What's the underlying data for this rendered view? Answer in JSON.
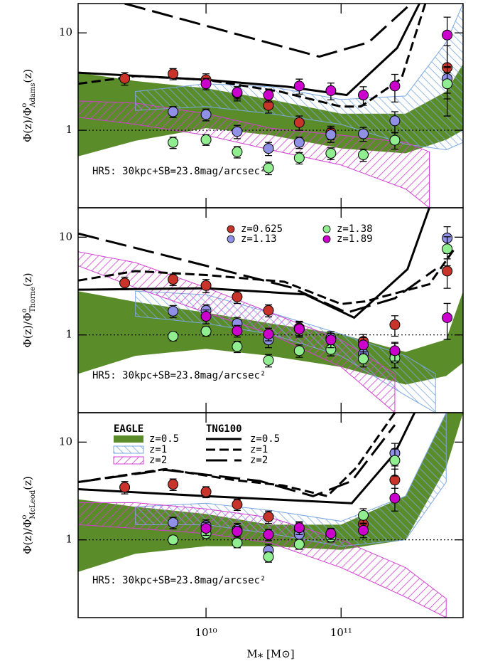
{
  "chart_data": [
    {
      "type": "scatter",
      "ylabel": {
        "text": "Φ(z)/Φ",
        "sup": "o",
        "sub": "Adams",
        "tail": "(z)"
      },
      "annotation": "HR5: 30kpc+SB=23.8mag/arcsec²",
      "xlim": [
        1130000000.0,
        800000000000.0
      ],
      "ylim": [
        0.16,
        20
      ],
      "yticks": [
        1,
        10
      ],
      "log_x": true,
      "log_y": true,
      "reference_line": 1,
      "series": [
        {
          "color": "#c8342a",
          "x": [
            2500000000.0,
            5700000000.0,
            10000000000.0,
            17000000000.0,
            29000000000.0,
            49000000000.0,
            84000000000.0,
            610000000000.0
          ],
          "values": [
            3.4,
            3.8,
            3.3,
            2.4,
            1.8,
            1.2,
            0.95,
            4.4
          ],
          "errors": [
            0.5,
            0.5,
            0.5,
            0.4,
            0.3,
            0.2,
            0.15,
            3
          ]
        },
        {
          "color": "#9090e6",
          "x": [
            5700000000.0,
            10000000000.0,
            17000000000.0,
            29000000000.0,
            49000000000.0,
            84000000000.0,
            146000000000.0,
            250000000000.0,
            610000000000.0
          ],
          "values": [
            1.55,
            1.45,
            0.97,
            0.65,
            0.75,
            0.9,
            0.92,
            1.25,
            3.4
          ],
          "errors": [
            0.2,
            0.2,
            0.15,
            0.1,
            0.1,
            0.15,
            0.15,
            0.3,
            1
          ]
        },
        {
          "color": "#90ee90",
          "x": [
            5700000000.0,
            10000000000.0,
            17000000000.0,
            29000000000.0,
            49000000000.0,
            84000000000.0,
            146000000000.0,
            250000000000.0,
            610000000000.0
          ],
          "values": [
            0.75,
            0.8,
            0.6,
            0.41,
            0.52,
            0.58,
            0.56,
            0.79,
            3.0
          ],
          "errors": [
            0.1,
            0.1,
            0.08,
            0.06,
            0.07,
            0.08,
            0.08,
            0.15,
            0.9
          ]
        },
        {
          "color": "#cc00cc",
          "x": [
            10000000000.0,
            17000000000.0,
            29000000000.0,
            49000000000.0,
            84000000000.0,
            146000000000.0,
            250000000000.0,
            610000000000.0
          ],
          "values": [
            3.0,
            2.45,
            2.3,
            2.85,
            2.55,
            2.3,
            2.85,
            9.5
          ],
          "errors": [
            0.4,
            0.35,
            0.35,
            0.5,
            0.5,
            0.5,
            0.9,
            5
          ]
        }
      ],
      "lines": [
        {
          "dash": "solid",
          "x": [
            1130000000.0,
            10000000000.0,
            40000000000.0,
            110000000000.0,
            260000000000.0,
            380000000000.0
          ],
          "values": [
            3.9,
            3.3,
            2.8,
            2.3,
            7,
            20
          ]
        },
        {
          "dash": "dashed",
          "x": [
            1130000000.0,
            3000000000.0,
            10000000000.0,
            35000000000.0,
            100000000000.0,
            140000000000.0,
            280000000000.0,
            420000000000.0
          ],
          "values": [
            3.0,
            3.6,
            3.3,
            2.5,
            1.75,
            1.75,
            3.4,
            20
          ]
        },
        {
          "dash": "longdash",
          "x": [
            2500000000.0,
            69000000000.0,
            160000000000.0,
            330000000000.0
          ],
          "values": [
            20,
            5.7,
            8,
            20
          ]
        }
      ],
      "bands": [
        {
          "color": "#5b8c2a",
          "fill": "solid",
          "x": [
            1130000000.0,
            3000000000.0,
            10000000000.0,
            30000000000.0,
            100000000000.0,
            300000000000.0,
            600000000000.0,
            800000000000.0
          ],
          "lower": [
            0.54,
            0.78,
            1.05,
            0.89,
            0.65,
            0.58,
            0.8,
            1.0
          ],
          "upper": [
            3.9,
            3.2,
            2.7,
            2.07,
            1.48,
            1.48,
            2.5,
            4.8
          ]
        },
        {
          "color": "#7aa7e0",
          "fill": "hatch",
          "x": [
            3000000000.0,
            10000000000.0,
            30000000000.0,
            100000000000.0,
            300000000000.0,
            600000000000.0,
            800000000000.0
          ],
          "lower": [
            1.6,
            1.75,
            1.48,
            1.15,
            0.72,
            0.63,
            0.75
          ],
          "upper": [
            2.5,
            3.0,
            2.8,
            2.07,
            2.25,
            8,
            20
          ]
        },
        {
          "color": "#d040d0",
          "fill": "hatch",
          "x": [
            1130000000.0,
            3000000000.0,
            10000000000.0,
            30000000000.0,
            100000000000.0,
            300000000000.0,
            450000000000.0
          ],
          "lower": [
            1.36,
            1.15,
            0.89,
            0.63,
            0.44,
            0.25,
            0.16
          ],
          "upper": [
            2.0,
            1.9,
            1.48,
            1.05,
            0.89,
            0.75,
            0.6
          ]
        }
      ]
    },
    {
      "type": "scatter",
      "ylabel": {
        "text": "Φ(z)/Φ",
        "sup": "o",
        "sub": "Thorne",
        "tail": "(z)"
      },
      "annotation": "HR5: 30kpc+SB=23.8mag/arcsec²",
      "xlim": [
        1130000000.0,
        800000000000.0
      ],
      "ylim": [
        0.16,
        20
      ],
      "yticks": [
        1,
        10
      ],
      "log_x": true,
      "log_y": true,
      "reference_line": 1,
      "legend": "upper center",
      "series": [
        {
          "name": "z=0.625",
          "color": "#c8342a",
          "x": [
            2500000000.0,
            5700000000.0,
            10000000000.0,
            17000000000.0,
            29000000000.0,
            49000000000.0,
            84000000000.0,
            146000000000.0,
            250000000000.0,
            610000000000.0
          ],
          "values": [
            3.4,
            3.7,
            3.2,
            2.45,
            1.78,
            1.18,
            0.93,
            0.86,
            1.27,
            4.5
          ],
          "errors": [
            0.5,
            0.5,
            0.5,
            0.35,
            0.25,
            0.2,
            0.15,
            0.15,
            0.3,
            1.5
          ]
        },
        {
          "name": "z=1.13",
          "color": "#9090e6",
          "x": [
            5700000000.0,
            10000000000.0,
            17000000000.0,
            29000000000.0,
            49000000000.0,
            84000000000.0,
            146000000000.0,
            250000000000.0,
            610000000000.0
          ],
          "values": [
            1.75,
            1.78,
            1.31,
            0.89,
            1.15,
            0.93,
            0.64,
            0.67,
            9.8
          ],
          "errors": [
            0.25,
            0.25,
            0.2,
            0.15,
            0.2,
            0.15,
            0.12,
            0.15,
            3
          ]
        },
        {
          "name": "z=1.38",
          "color": "#90ee90",
          "x": [
            5700000000.0,
            10000000000.0,
            17000000000.0,
            29000000000.0,
            49000000000.0,
            84000000000.0,
            146000000000.0,
            250000000000.0,
            610000000000.0
          ],
          "values": [
            0.97,
            1.09,
            0.76,
            0.55,
            0.69,
            0.71,
            0.57,
            0.58,
            7.6
          ],
          "errors": [
            0.1,
            0.12,
            0.1,
            0.08,
            0.1,
            0.1,
            0.1,
            0.12,
            2.5
          ]
        },
        {
          "name": "z=1.89",
          "color": "#cc00cc",
          "x": [
            10000000000.0,
            17000000000.0,
            29000000000.0,
            49000000000.0,
            84000000000.0,
            146000000000.0,
            250000000000.0,
            610000000000.0
          ],
          "values": [
            1.55,
            1.1,
            1.02,
            1.15,
            0.89,
            0.79,
            0.69,
            1.5
          ],
          "errors": [
            0.25,
            0.15,
            0.15,
            0.2,
            0.15,
            0.15,
            0.15,
            0.6
          ]
        }
      ],
      "lines": [
        {
          "dash": "solid",
          "x": [
            1130000000.0,
            10000000000.0,
            54000000000.0,
            125000000000.0,
            310000000000.0,
            450000000000.0
          ],
          "values": [
            2.9,
            3.0,
            2.6,
            1.5,
            4.7,
            20
          ]
        },
        {
          "dash": "dashed",
          "x": [
            1130000000.0,
            3000000000.0,
            10000000000.0,
            38000000000.0,
            100000000000.0,
            150000000000.0,
            450000000000.0,
            700000000000.0
          ],
          "values": [
            3.6,
            4.5,
            4.1,
            3.5,
            2.07,
            2.2,
            3.3,
            7.8
          ]
        },
        {
          "dash": "longdash",
          "x": [
            1130000000.0,
            10000000000.0,
            43000000000.0,
            110000000000.0,
            250000000000.0,
            500000000000.0
          ],
          "values": [
            10.9,
            5.1,
            3.05,
            1.69,
            2.37,
            4.7
          ]
        }
      ],
      "bands": [
        {
          "color": "#5b8c2a",
          "fill": "solid",
          "x": [
            1130000000.0,
            3000000000.0,
            10000000000.0,
            30000000000.0,
            100000000000.0,
            300000000000.0,
            600000000000.0,
            800000000000.0
          ],
          "lower": [
            0.4,
            0.61,
            0.72,
            0.61,
            0.47,
            0.31,
            0.38,
            0.52
          ],
          "upper": [
            2.8,
            2.18,
            1.69,
            1.31,
            1.02,
            0.67,
            0.9,
            2.8
          ]
        },
        {
          "color": "#7aa7e0",
          "fill": "hatch",
          "x": [
            3000000000.0,
            10000000000.0,
            30000000000.0,
            100000000000.0,
            300000000000.0,
            500000000000.0
          ],
          "lower": [
            1.55,
            1.31,
            1.02,
            0.61,
            0.24,
            0.16
          ],
          "upper": [
            2.8,
            2.58,
            1.69,
            1.02,
            0.61,
            0.4
          ]
        },
        {
          "color": "#d040d0",
          "fill": "hatch",
          "x": [
            1130000000.0,
            3000000000.0,
            10000000000.0,
            30000000000.0,
            100000000000.0,
            250000000000.0
          ],
          "lower": [
            5.1,
            3.05,
            1.69,
            1.02,
            0.47,
            0.16
          ],
          "upper": [
            7.1,
            5.5,
            3.05,
            1.69,
            0.89,
            0.4
          ]
        }
      ]
    },
    {
      "type": "scatter",
      "ylabel": {
        "text": "Φ(z)/Φ",
        "sup": "o",
        "sub": "McLeod",
        "tail": "(z)"
      },
      "annotation": "HR5: 30kpc+SB=23.8mag/arcsec²",
      "xlabel": "M⁎ [M⊙]",
      "xlim": [
        1130000000.0,
        800000000000.0
      ],
      "ylim": [
        0.16,
        20
      ],
      "yticks": [
        1,
        10
      ],
      "log_x": true,
      "log_y": true,
      "reference_line": 1,
      "xticks": [
        {
          "value": 10000000000.0,
          "label": "10¹⁰"
        },
        {
          "value": 100000000000.0,
          "label": "10¹¹"
        }
      ],
      "legend": "upper left",
      "bands_title": "EAGLE",
      "lines_title": "TNG100",
      "series": [
        {
          "color": "#c8342a",
          "x": [
            2500000000.0,
            5700000000.0,
            10000000000.0,
            17000000000.0,
            29000000000.0,
            49000000000.0,
            84000000000.0,
            146000000000.0,
            250000000000.0
          ],
          "values": [
            3.45,
            3.7,
            3.1,
            2.3,
            1.72,
            1.29,
            1.14,
            1.45,
            4.1
          ],
          "errors": [
            0.5,
            0.5,
            0.4,
            0.3,
            0.25,
            0.2,
            0.15,
            0.3,
            1.2
          ]
        },
        {
          "color": "#9090e6",
          "x": [
            5700000000.0,
            10000000000.0,
            17000000000.0,
            29000000000.0,
            49000000000.0,
            84000000000.0,
            250000000000.0
          ],
          "values": [
            1.5,
            1.4,
            1.27,
            0.78,
            1.14,
            1.13,
            7.7
          ],
          "errors": [
            0.2,
            0.2,
            0.2,
            0.12,
            0.15,
            0.15,
            2
          ]
        },
        {
          "color": "#90ee90",
          "x": [
            5700000000.0,
            10000000000.0,
            17000000000.0,
            29000000000.0,
            49000000000.0,
            84000000000.0,
            146000000000.0,
            250000000000.0
          ],
          "values": [
            1.0,
            1.16,
            0.93,
            0.67,
            0.9,
            1.07,
            1.78,
            6.5
          ],
          "errors": [
            0.1,
            0.12,
            0.1,
            0.08,
            0.1,
            0.12,
            0.3,
            2
          ]
        },
        {
          "color": "#cc00cc",
          "x": [
            10000000000.0,
            17000000000.0,
            29000000000.0,
            49000000000.0,
            84000000000.0,
            146000000000.0,
            250000000000.0
          ],
          "values": [
            1.31,
            1.22,
            1.13,
            1.33,
            1.16,
            1.25,
            2.67
          ],
          "errors": [
            0.2,
            0.15,
            0.15,
            0.2,
            0.15,
            0.2,
            0.7
          ]
        }
      ],
      "lines": [
        {
          "name": "z=0.5",
          "dash": "solid",
          "x": [
            1130000000.0,
            10000000000.0,
            120000000000.0,
            250000000000.0,
            350000000000.0
          ],
          "values": [
            3.3,
            2.8,
            2.37,
            7.7,
            20
          ]
        },
        {
          "name": "z=1",
          "dash": "dashed",
          "x": [
            1130000000.0,
            5000000000.0,
            16000000000.0,
            37000000000.0,
            79000000000.0,
            130000000000.0,
            250000000000.0
          ],
          "values": [
            3.9,
            5.3,
            4.1,
            3.6,
            2.8,
            5.5,
            20
          ]
        },
        {
          "name": "z=2",
          "dash": "longdash",
          "x": [
            1130000000.0,
            5000000000.0,
            25000000000.0,
            62000000000.0,
            120000000000.0,
            250000000000.0
          ],
          "values": [
            3.9,
            5.2,
            4.0,
            2.8,
            4.0,
            15
          ]
        }
      ],
      "bands": [
        {
          "name": "z=0.5",
          "color": "#5b8c2a",
          "fill": "solid",
          "x": [
            1130000000.0,
            3000000000.0,
            10000000000.0,
            30000000000.0,
            100000000000.0,
            300000000000.0,
            600000000000.0,
            800000000000.0
          ],
          "lower": [
            0.47,
            0.72,
            0.86,
            0.86,
            0.79,
            1.0,
            5.5,
            20
          ],
          "upper": [
            2.6,
            2.18,
            1.84,
            1.43,
            1.43,
            2.8,
            20,
            20
          ]
        },
        {
          "name": "z=1",
          "color": "#7aa7e0",
          "fill": "hatch",
          "x": [
            3000000000.0,
            10000000000.0,
            30000000000.0,
            100000000000.0,
            300000000000.0,
            600000000000.0
          ],
          "lower": [
            1.43,
            1.43,
            1.16,
            0.86,
            1.0,
            3.9
          ],
          "upper": [
            2.18,
            2.37,
            2.0,
            1.55,
            2.8,
            20
          ]
        },
        {
          "name": "z=2",
          "color": "#d040d0",
          "fill": "hatch",
          "x": [
            1130000000.0,
            3000000000.0,
            10000000000.0,
            30000000000.0,
            100000000000.0,
            300000000000.0,
            600000000000.0
          ],
          "lower": [
            1.43,
            1.31,
            1.16,
            0.93,
            0.52,
            0.26,
            0.16
          ],
          "upper": [
            2.4,
            2.4,
            2.07,
            1.69,
            1.0,
            0.52,
            0.25
          ]
        }
      ]
    }
  ]
}
